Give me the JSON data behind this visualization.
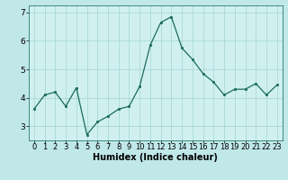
{
  "x": [
    0,
    1,
    2,
    3,
    4,
    5,
    6,
    7,
    8,
    9,
    10,
    11,
    12,
    13,
    14,
    15,
    16,
    17,
    18,
    19,
    20,
    21,
    22,
    23
  ],
  "y": [
    3.6,
    4.1,
    4.2,
    3.7,
    4.35,
    2.7,
    3.15,
    3.35,
    3.6,
    3.7,
    4.4,
    5.85,
    6.65,
    6.85,
    5.75,
    5.35,
    4.85,
    4.55,
    4.1,
    4.3,
    4.3,
    4.5,
    4.1,
    4.45
  ],
  "xlabel": "Humidex (Indice chaleur)",
  "ylim": [
    2.5,
    7.25
  ],
  "xlim": [
    -0.5,
    23.5
  ],
  "yticks": [
    3,
    4,
    5,
    6,
    7
  ],
  "xticks": [
    0,
    1,
    2,
    3,
    4,
    5,
    6,
    7,
    8,
    9,
    10,
    11,
    12,
    13,
    14,
    15,
    16,
    17,
    18,
    19,
    20,
    21,
    22,
    23
  ],
  "line_color": "#1a6b5a",
  "marker_color": "#1a6b5a",
  "bg_color": "#c0e8e8",
  "grid_color": "#aad8d8",
  "axis_bg": "#d0f0f0",
  "xlabel_fontsize": 7.0,
  "tick_fontsize": 6.0,
  "ytick_fontsize": 6.5
}
